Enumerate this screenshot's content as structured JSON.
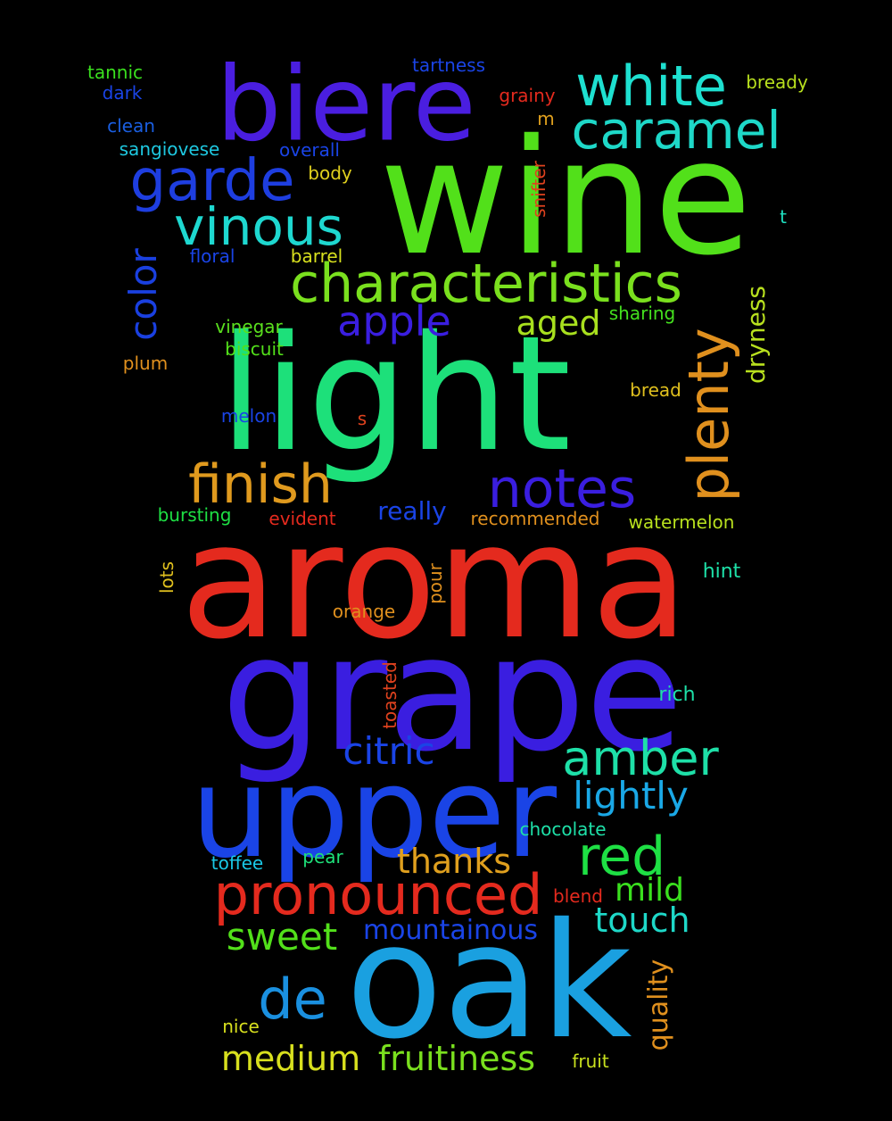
{
  "background_color": "#000000",
  "words": [
    {
      "text": "wine",
      "color": "#52e01a"
    },
    {
      "text": "light",
      "color": "#1de07a"
    },
    {
      "text": "aroma",
      "color": "#e42a1e"
    },
    {
      "text": "grape",
      "color": "#3a1ee0"
    },
    {
      "text": "upper",
      "color": "#1a44e6"
    },
    {
      "text": "oak",
      "color": "#1aa0e0"
    },
    {
      "text": "biere",
      "color": "#4a1ee0"
    },
    {
      "text": "white",
      "color": "#1ee0d0"
    },
    {
      "text": "caramel",
      "color": "#1ed8c8"
    },
    {
      "text": "garde",
      "color": "#1e3ee0"
    },
    {
      "text": "vinous",
      "color": "#1ed8d0"
    },
    {
      "text": "characteristics",
      "color": "#7ae01e"
    },
    {
      "text": "color",
      "color": "#1a40e0"
    },
    {
      "text": "apple",
      "color": "#3a1ee0"
    },
    {
      "text": "aged",
      "color": "#a8e01e"
    },
    {
      "text": "plenty",
      "color": "#e0901e"
    },
    {
      "text": "dryness",
      "color": "#b8e01e"
    },
    {
      "text": "finish",
      "color": "#e09a1e"
    },
    {
      "text": "notes",
      "color": "#3a1ee0"
    },
    {
      "text": "citric",
      "color": "#1a44e6"
    },
    {
      "text": "amber",
      "color": "#1ee0a8"
    },
    {
      "text": "lightly",
      "color": "#1aa8e6"
    },
    {
      "text": "red",
      "color": "#1ee044"
    },
    {
      "text": "pronounced",
      "color": "#e42a1e"
    },
    {
      "text": "thanks",
      "color": "#e0a01e"
    },
    {
      "text": "mild",
      "color": "#3ae01e"
    },
    {
      "text": "touch",
      "color": "#1ed8c8"
    },
    {
      "text": "sweet",
      "color": "#52e01a"
    },
    {
      "text": "mountainous",
      "color": "#1a44e6"
    },
    {
      "text": "de",
      "color": "#1a90e0"
    },
    {
      "text": "medium",
      "color": "#d8e01e"
    },
    {
      "text": "fruitiness",
      "color": "#7ae01e"
    },
    {
      "text": "quality",
      "color": "#e0901e"
    },
    {
      "text": "fruit",
      "color": "#c8e01e"
    },
    {
      "text": "nice",
      "color": "#d8e01e"
    },
    {
      "text": "tannic",
      "color": "#3ae01e"
    },
    {
      "text": "dark",
      "color": "#1a44e6"
    },
    {
      "text": "clean",
      "color": "#1a5ee0"
    },
    {
      "text": "sangiovese",
      "color": "#1ec8e0"
    },
    {
      "text": "tartness",
      "color": "#1a44e6"
    },
    {
      "text": "grainy",
      "color": "#e42a1e"
    },
    {
      "text": "m",
      "color": "#e0a01e"
    },
    {
      "text": "overall",
      "color": "#1a44e6"
    },
    {
      "text": "body",
      "color": "#e0d01e"
    },
    {
      "text": "snifter",
      "color": "#e0421e"
    },
    {
      "text": "bready",
      "color": "#b8e01e"
    },
    {
      "text": "t",
      "color": "#1ee0c0"
    },
    {
      "text": "floral",
      "color": "#1a44e6"
    },
    {
      "text": "barrel",
      "color": "#d8e01e"
    },
    {
      "text": "vinegar",
      "color": "#5ae01e"
    },
    {
      "text": "biscuit",
      "color": "#52e01a"
    },
    {
      "text": "plum",
      "color": "#e0901e"
    },
    {
      "text": "sharing",
      "color": "#44e01e"
    },
    {
      "text": "bread",
      "color": "#e0c01e"
    },
    {
      "text": "melon",
      "color": "#1a44e6"
    },
    {
      "text": "s",
      "color": "#e0421e"
    },
    {
      "text": "bursting",
      "color": "#1ee044"
    },
    {
      "text": "evident",
      "color": "#e42a1e"
    },
    {
      "text": "really",
      "color": "#1a44e6"
    },
    {
      "text": "recommended",
      "color": "#e0901e"
    },
    {
      "text": "watermelon",
      "color": "#b8e01e"
    },
    {
      "text": "hint",
      "color": "#1ee0a8"
    },
    {
      "text": "lots",
      "color": "#e0c01e"
    },
    {
      "text": "pour",
      "color": "#e0901e"
    },
    {
      "text": "orange",
      "color": "#e0901e"
    },
    {
      "text": "toasted",
      "color": "#e0421e"
    },
    {
      "text": "rich",
      "color": "#1ee0a8"
    },
    {
      "text": "chocolate",
      "color": "#1ee0a8"
    },
    {
      "text": "toffee",
      "color": "#1ac8e6"
    },
    {
      "text": "pear",
      "color": "#1ee07a"
    },
    {
      "text": "blend",
      "color": "#e42a1e"
    }
  ]
}
